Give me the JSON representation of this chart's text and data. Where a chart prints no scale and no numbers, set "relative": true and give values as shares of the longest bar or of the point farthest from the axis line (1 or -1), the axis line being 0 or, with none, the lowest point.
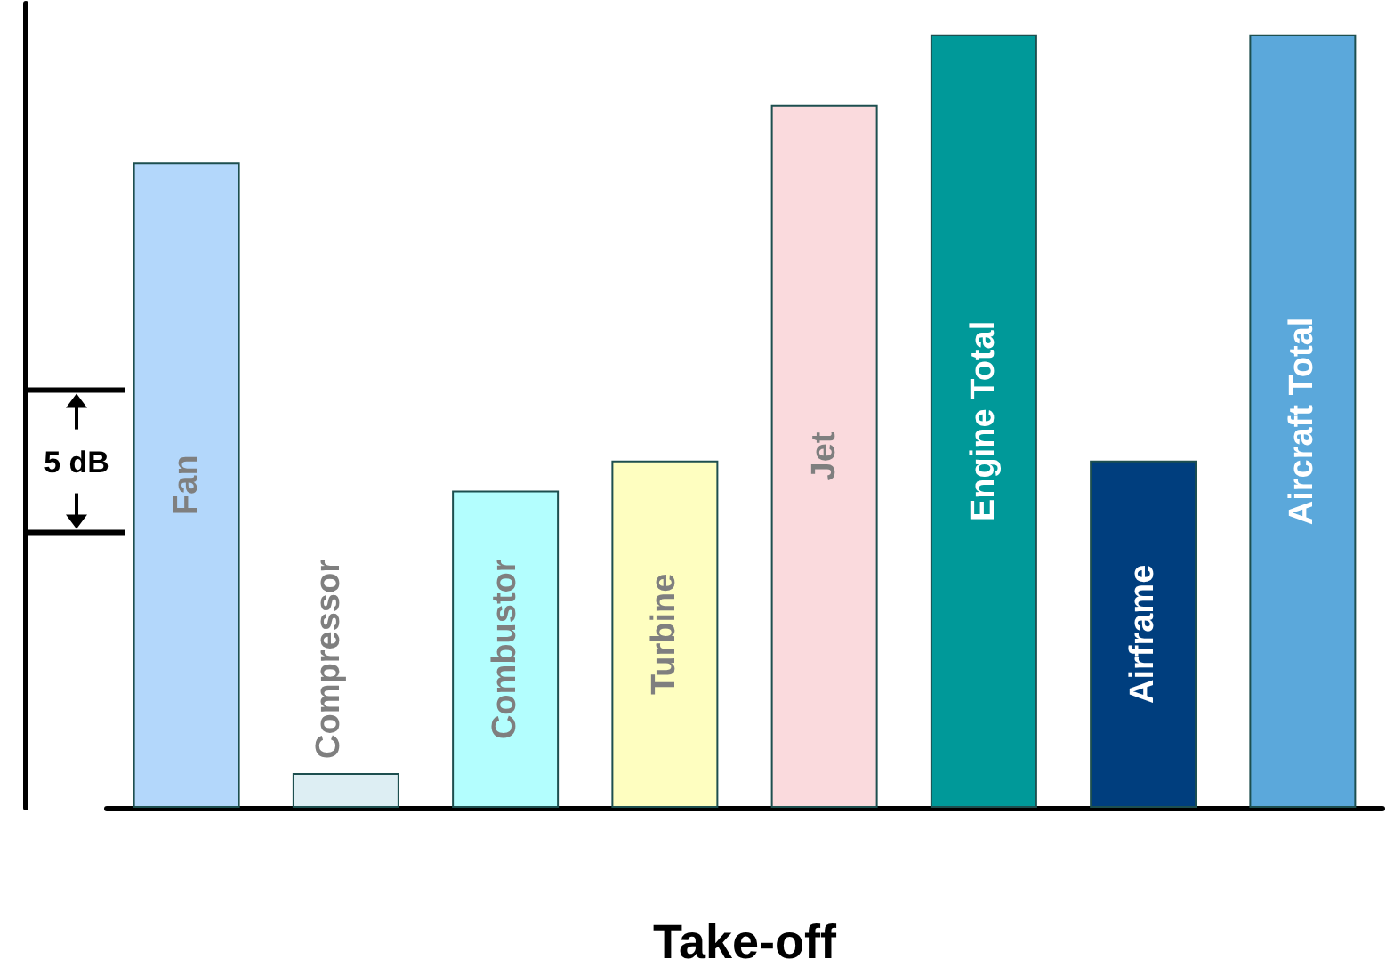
{
  "chart_data": {
    "type": "bar",
    "relative": true,
    "xlabel": "Take-off",
    "categories": [
      "Fan",
      "Compressor",
      "Combustor",
      "Turbine",
      "Jet",
      "Engine Total",
      "Airframe",
      "Aircraft Total"
    ],
    "values": [
      0.835,
      0.045,
      0.41,
      0.449,
      0.909,
      1,
      0.449,
      1
    ],
    "colors": [
      "#b3d7fb",
      "#ddeef3",
      "#b3fefe",
      "#fefec0",
      "#fadadd",
      "#009999",
      "#003e7e",
      "#5ba8db"
    ],
    "annotations": [
      "5 dB"
    ],
    "grid": false
  }
}
